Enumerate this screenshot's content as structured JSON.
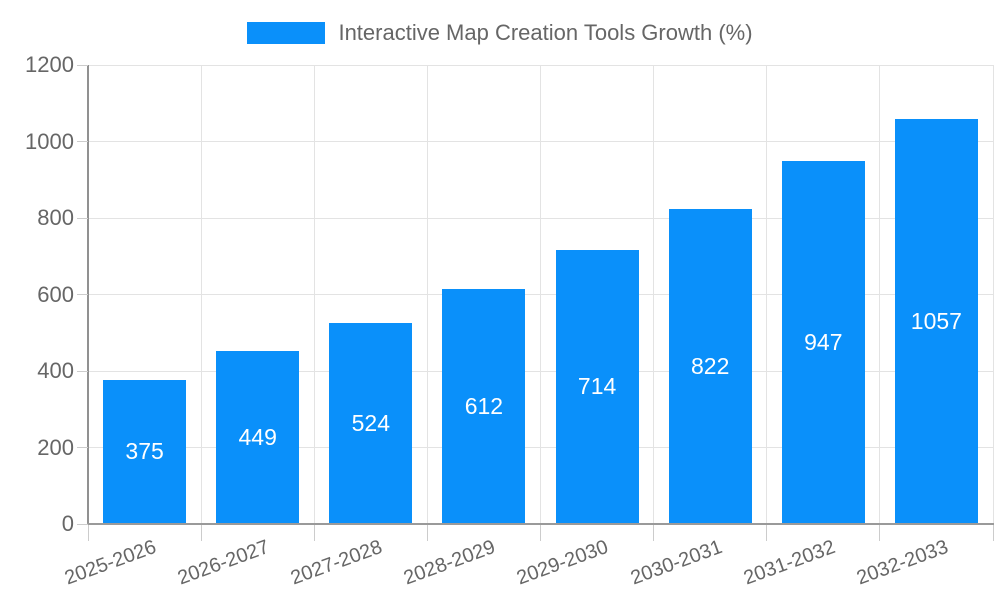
{
  "chart_data": {
    "type": "bar",
    "title": "Interactive Map Creation Tools Growth (%)",
    "categories": [
      "2025-2026",
      "2026-2027",
      "2027-2028",
      "2028-2029",
      "2029-2030",
      "2030-2031",
      "2031-2032",
      "2032-2033"
    ],
    "values": [
      375,
      449,
      524,
      612,
      714,
      822,
      947,
      1057
    ],
    "series": [
      {
        "name": "Interactive Map Creation Tools Growth (%)",
        "values": [
          375,
          449,
          524,
          612,
          714,
          822,
          947,
          1057
        ]
      }
    ],
    "xlabel": "",
    "ylabel": "",
    "ylim": [
      0,
      1200
    ],
    "y_ticks": [
      0,
      200,
      400,
      600,
      800,
      1000,
      1200
    ],
    "grid": true,
    "legend_position": "top",
    "value_labels": "inside-center",
    "colors": {
      "bar": "#0a90fa",
      "value_label": "#ffffff",
      "axis_text": "#666666",
      "grid_line": "#e3e3e3",
      "axis_line": "#999999"
    }
  }
}
